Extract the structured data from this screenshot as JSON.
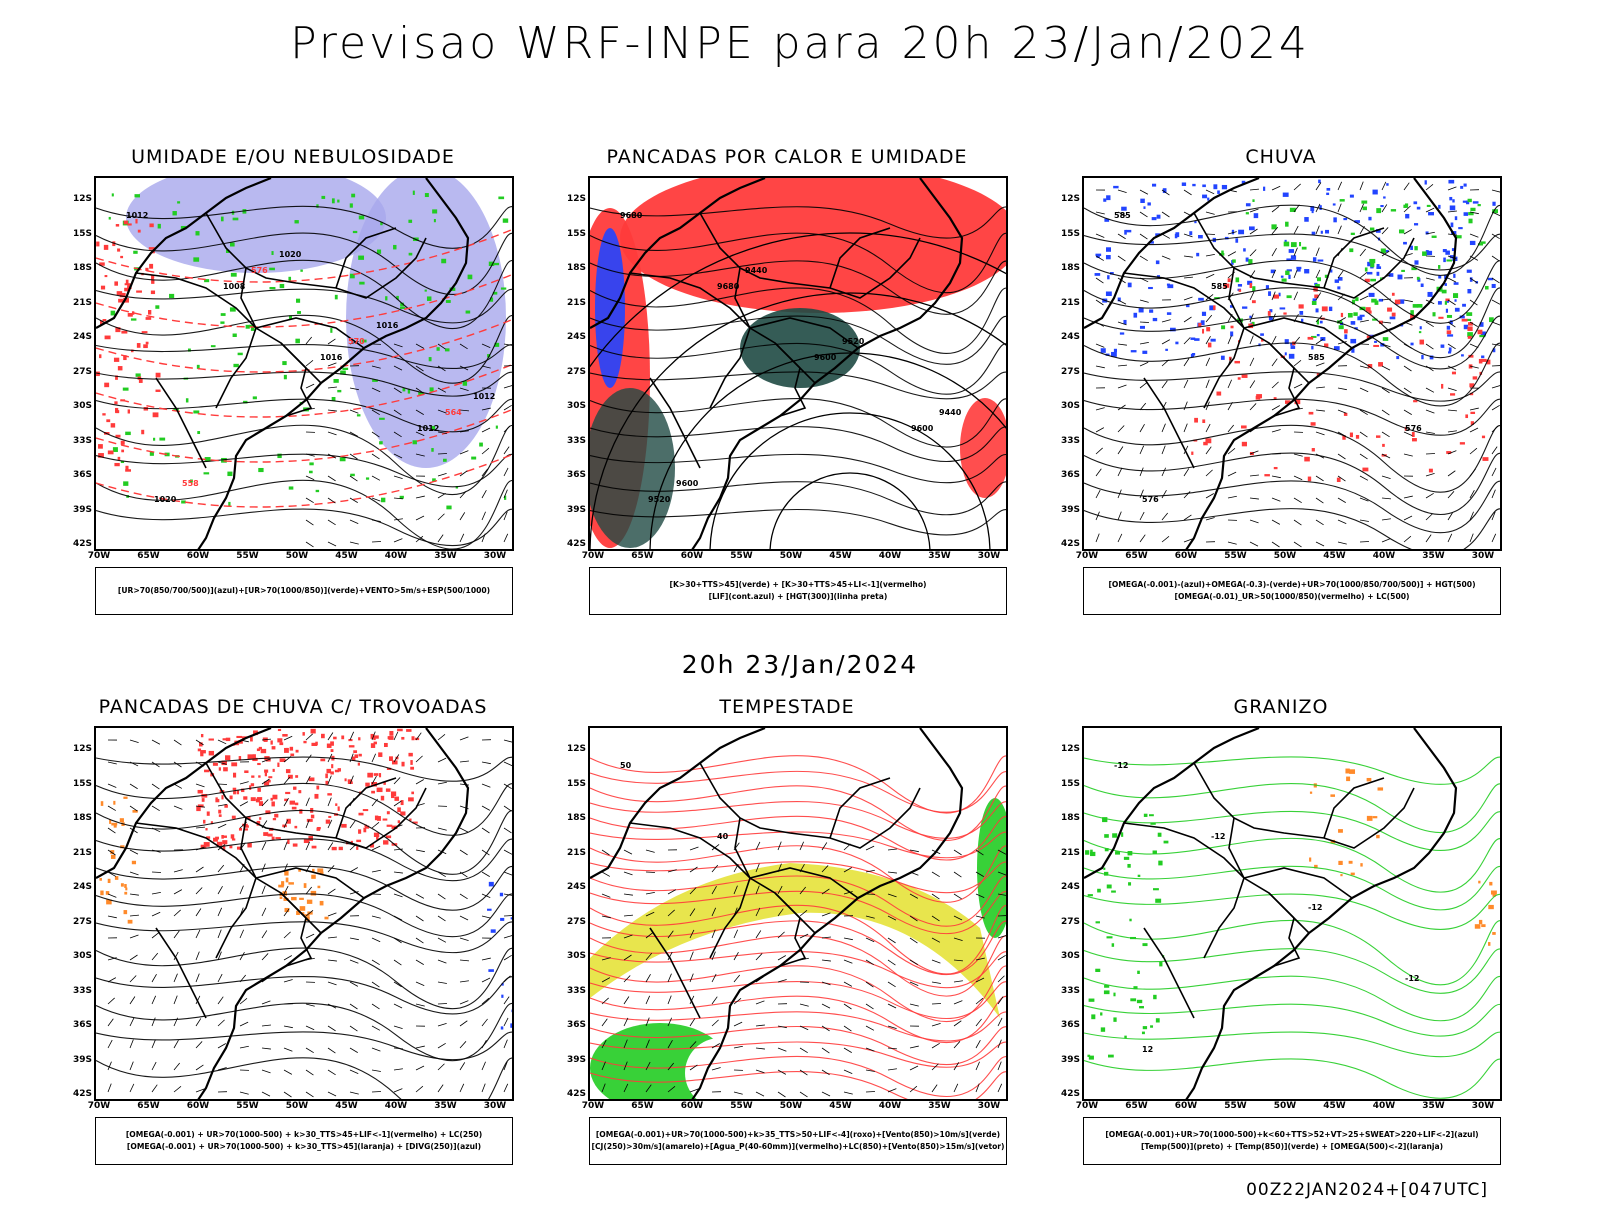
{
  "title": "Previsao WRF-INPE  para 20h 23/Jan/2024",
  "mid_time": "20h 23/Jan/2024",
  "footer": "00Z22JAN2024+[047UTC]",
  "axes": {
    "lat": [
      "12S",
      "15S",
      "18S",
      "21S",
      "24S",
      "27S",
      "30S",
      "33S",
      "36S",
      "39S",
      "42S"
    ],
    "lon": [
      "70W",
      "65W",
      "60W",
      "55W",
      "50W",
      "45W",
      "40W",
      "35W",
      "30W"
    ]
  },
  "colors": {
    "red": "#ff3b3b",
    "green": "#22cc22",
    "blue": "#2244ff",
    "lavender": "#a7a7ec",
    "orange": "#ff8a2a",
    "yellow": "#e6e23a",
    "darkteal": "#1f4a44",
    "black": "#000000"
  },
  "panels": [
    {
      "title": "UMIDADE E/OU NEBULOSIDADE",
      "legend": [
        "[UR>70(850/700/500)](azul)+[UR>70(1000/850)](verde)+VENTO>5m/s+ESP(500/1000)"
      ],
      "labels": [
        "1012",
        "1008",
        "1016",
        "1012",
        "1020",
        "576",
        "570",
        "564",
        "558",
        "1020",
        "1016",
        "1012"
      ]
    },
    {
      "title": "PANCADAS POR CALOR E UMIDADE",
      "legend": [
        "[K>30+TTS>45](verde) + [K>30+TTS>45+LI<-1](vermelho)",
        "[LIF](cont.azul) + [HGT(300)](linha preta)"
      ],
      "labels": [
        "9680",
        "9680",
        "9600",
        "9600",
        "9520",
        "9440",
        "9520",
        "9440",
        "9600"
      ]
    },
    {
      "title": "CHUVA",
      "legend": [
        "[OMEGA(-0.001)-(azul)+OMEGA(-0.3)-(verde)+UR>70(1000/850/700/500)] + HGT(500)",
        "[OMEGA(-0.01)_UR>50(1000/850)(vermelho) + LC(500)"
      ],
      "labels": [
        "585",
        "585",
        "585",
        "576",
        "576"
      ]
    },
    {
      "title": "PANCADAS DE CHUVA C/ TROVOADAS",
      "legend": [
        "[OMEGA(-0.001) + UR>70(1000-500) + k>30_TTS>45+LIF<-1](vermelho) + LC(250)",
        "[OMEGA(-0.001) + UR>70(1000-500) + k>30_TTS>45](laranja) + [DIVG(250)](azul)"
      ],
      "labels": []
    },
    {
      "title": "TEMPESTADE",
      "legend": [
        "[OMEGA(-0.001)+UR>70(1000-500)+k>35_TTS>50+LIF<-4](roxo)+[Vento(850)>10m/s](verde)",
        "[CJ(250)>30m/s](amarelo)+[Agua_P(40-60mm)](vermelho)+LC(850)+[Vento(850)>15m/s](vetor)"
      ],
      "labels": [
        "50",
        "40"
      ]
    },
    {
      "title": "GRANIZO",
      "legend": [
        "[OMEGA(-0.001)+UR>70(1000-500)+k<60+TTS>52+VT>25+SWEAT>220+LIF<-2](azul)",
        "[Temp(500)](preto) + [Temp(850)](verde) + [OMEGA(500)<-2](laranja)"
      ],
      "labels": [
        "-12",
        "-12",
        "-12",
        "-12",
        "12"
      ]
    }
  ]
}
